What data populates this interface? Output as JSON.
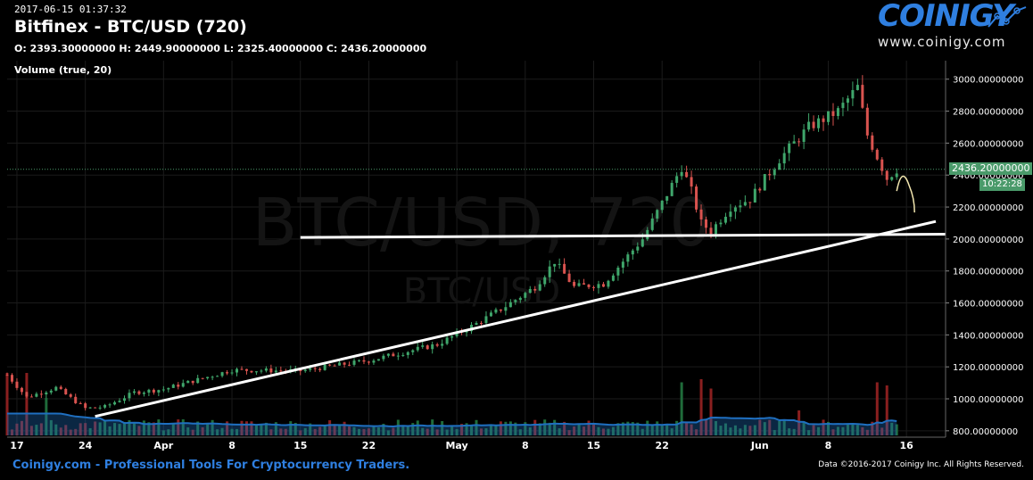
{
  "header": {
    "timestamp": "2017-06-15 01:37:32",
    "title": "Bitfinex - BTC/USD (720)",
    "ohlc": "O: 2393.30000000 H: 2449.90000000 L: 2325.40000000 C: 2436.20000000",
    "volume_label": "Volume (true, 20)"
  },
  "watermark": {
    "big": "BTC/USD, 720",
    "small": "BTC/USD"
  },
  "logo": {
    "brand": "COINIGY",
    "url": "www.coinigy.com"
  },
  "footer": {
    "left": "Coinigy.com - Professional Tools For Cryptocurrency Traders.",
    "right": "Data ©2016-2017 Coinigy Inc. All Rights Reserved."
  },
  "price_tag": {
    "price": "2436.20000000",
    "timer": "10:22:28"
  },
  "colors": {
    "up": "#3fa66b",
    "down": "#d9534f",
    "accent": "#2f7fe0",
    "volume_ma": "#1f6fc0",
    "tag": "#4a9a6a"
  },
  "chart_data": {
    "type": "candlestick",
    "y_axis": {
      "ticks": [
        800,
        1000,
        1200,
        1400,
        1600,
        1800,
        2000,
        2200,
        2400,
        2600,
        2800,
        3000
      ],
      "tick_labels": [
        "800.00000000",
        "1000.00000000",
        "1200.00000000",
        "1400.00000000",
        "1600.00000000",
        "1800.00000000",
        "2000.00000000",
        "2200.00000000",
        "2400.00000000",
        "2600.00000000",
        "2800.00000000",
        "3000.00000000"
      ],
      "ylim": [
        760,
        3060
      ]
    },
    "x_axis": {
      "tick_labels": [
        "17",
        "24",
        "Apr",
        "8",
        "15",
        "22",
        "May",
        "8",
        "15",
        "22",
        "Jun",
        "8",
        "16"
      ],
      "tick_dates": [
        "2017-03-17",
        "2017-03-24",
        "2017-04-01",
        "2017-04-08",
        "2017-04-15",
        "2017-04-22",
        "2017-05-01",
        "2017-05-08",
        "2017-05-15",
        "2017-05-22",
        "2017-06-01",
        "2017-06-08",
        "2017-06-16"
      ],
      "xlim": [
        "2017-03-16",
        "2017-06-20"
      ]
    },
    "grid": true,
    "current_price": 2436.2,
    "anchor_prices": [
      [
        "2017-03-16",
        1150
      ],
      [
        "2017-03-18",
        1010
      ],
      [
        "2017-03-21",
        1070
      ],
      [
        "2017-03-24",
        940
      ],
      [
        "2017-03-26",
        950
      ],
      [
        "2017-03-29",
        1040
      ],
      [
        "2017-04-01",
        1060
      ],
      [
        "2017-04-08",
        1180
      ],
      [
        "2017-04-15",
        1175
      ],
      [
        "2017-04-22",
        1240
      ],
      [
        "2017-04-29",
        1340
      ],
      [
        "2017-05-03",
        1470
      ],
      [
        "2017-05-06",
        1580
      ],
      [
        "2017-05-09",
        1700
      ],
      [
        "2017-05-11",
        1860
      ],
      [
        "2017-05-13",
        1700
      ],
      [
        "2017-05-16",
        1720
      ],
      [
        "2017-05-20",
        2000
      ],
      [
        "2017-05-24",
        2450
      ],
      [
        "2017-05-25",
        2300
      ],
      [
        "2017-05-26",
        2100
      ],
      [
        "2017-05-27",
        2050
      ],
      [
        "2017-05-29",
        2200
      ],
      [
        "2017-05-31",
        2250
      ],
      [
        "2017-06-03",
        2500
      ],
      [
        "2017-06-06",
        2700
      ],
      [
        "2017-06-09",
        2800
      ],
      [
        "2017-06-11",
        2950
      ],
      [
        "2017-06-12",
        2650
      ],
      [
        "2017-06-14",
        2380
      ],
      [
        "2017-06-15",
        2436
      ]
    ],
    "volume_spikes": [
      [
        "2017-03-16",
        1
      ],
      [
        "2017-03-18",
        1
      ],
      [
        "2017-03-20",
        0.6
      ],
      [
        "2017-05-24",
        0.85
      ],
      [
        "2017-05-26",
        0.9
      ],
      [
        "2017-05-27",
        0.75
      ],
      [
        "2017-06-05",
        0.4
      ],
      [
        "2017-06-13",
        0.85
      ],
      [
        "2017-06-14",
        0.8
      ]
    ],
    "trendlines": [
      {
        "name": "support-horizontal",
        "from": [
          "2017-04-15",
          2010
        ],
        "to": [
          "2017-06-20",
          2030
        ]
      },
      {
        "name": "rising-support",
        "from": [
          "2017-03-25",
          890
        ],
        "to": [
          "2017-06-19",
          2110
        ]
      }
    ]
  }
}
